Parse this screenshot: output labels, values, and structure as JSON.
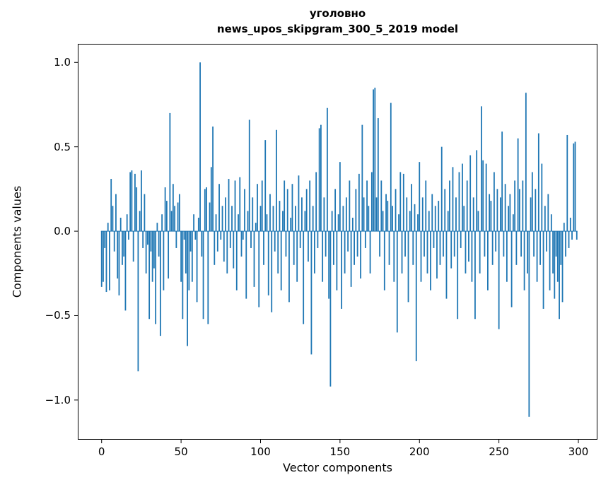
{
  "figure": {
    "title_line1": "уголовно",
    "title_line2": "news_upos_skipgram_300_5_2019 model",
    "xlabel": "Vector components",
    "ylabel": "Components values"
  },
  "chart_data": {
    "type": "bar",
    "title": "уголовно — news_upos_skipgram_300_5_2019 model",
    "xlabel": "Vector components",
    "ylabel": "Components values",
    "bar_color": "#1f77b4",
    "n_components": 300,
    "xlim": [
      -15,
      312
    ],
    "ylim": [
      -1.235,
      1.11
    ],
    "grid": false,
    "legend": "none",
    "xticks": [
      0,
      50,
      100,
      150,
      200,
      250,
      300
    ],
    "xtick_labels": [
      "0",
      "50",
      "100",
      "150",
      "200",
      "250",
      "300"
    ],
    "yticks": [
      -1.0,
      -0.5,
      0.0,
      0.5,
      1.0
    ],
    "ytick_labels": [
      "−1.0",
      "−0.5",
      "0.0",
      "0.5",
      "1.0"
    ],
    "values": [
      -0.33,
      -0.3,
      -0.1,
      -0.36,
      0.05,
      -0.35,
      0.31,
      0.15,
      -0.12,
      0.22,
      -0.28,
      -0.38,
      0.08,
      -0.2,
      -0.15,
      -0.47,
      0.1,
      -0.05,
      0.35,
      0.36,
      -0.18,
      0.34,
      0.26,
      -0.83,
      0.12,
      0.36,
      -0.1,
      0.22,
      -0.25,
      -0.08,
      -0.52,
      -0.12,
      -0.3,
      -0.22,
      -0.55,
      0.05,
      -0.15,
      -0.62,
      0.1,
      -0.35,
      0.26,
      0.18,
      -0.28,
      0.7,
      0.12,
      0.28,
      0.15,
      -0.1,
      0.17,
      0.22,
      -0.3,
      -0.52,
      -0.05,
      -0.25,
      -0.68,
      -0.35,
      -0.12,
      -0.3,
      0.1,
      -0.05,
      -0.42,
      0.08,
      1.0,
      -0.15,
      -0.52,
      0.25,
      0.26,
      -0.55,
      0.17,
      0.38,
      0.62,
      -0.2,
      0.1,
      -0.12,
      0.28,
      -0.05,
      0.15,
      -0.18,
      0.2,
      -0.25,
      0.31,
      -0.1,
      0.15,
      -0.22,
      0.3,
      -0.35,
      0.1,
      0.32,
      -0.15,
      -0.05,
      0.25,
      -0.4,
      0.12,
      0.66,
      -0.1,
      0.2,
      -0.33,
      0.05,
      0.28,
      -0.45,
      0.15,
      0.3,
      -0.2,
      0.54,
      0.1,
      -0.38,
      0.22,
      -0.48,
      0.15,
      -0.12,
      0.6,
      -0.25,
      0.18,
      -0.35,
      0.12,
      0.3,
      -0.15,
      0.25,
      -0.42,
      0.08,
      0.28,
      -0.2,
      0.15,
      -0.3,
      0.33,
      -0.1,
      0.2,
      -0.55,
      0.12,
      0.25,
      -0.18,
      0.3,
      -0.73,
      0.15,
      -0.25,
      0.35,
      -0.1,
      0.61,
      0.63,
      -0.3,
      0.2,
      -0.15,
      0.73,
      -0.4,
      -0.92,
      0.12,
      -0.2,
      0.25,
      -0.35,
      0.1,
      0.41,
      -0.46,
      0.15,
      -0.25,
      0.2,
      -0.12,
      0.3,
      -0.33,
      0.08,
      -0.2,
      0.25,
      -0.15,
      0.34,
      -0.28,
      0.63,
      0.2,
      -0.1,
      0.3,
      0.15,
      -0.25,
      0.35,
      0.84,
      0.85,
      0.2,
      0.67,
      -0.15,
      0.3,
      0.12,
      -0.35,
      0.22,
      0.18,
      -0.2,
      0.76,
      0.15,
      -0.3,
      0.25,
      -0.6,
      0.1,
      0.35,
      -0.25,
      0.34,
      -0.15,
      0.2,
      -0.42,
      0.12,
      0.28,
      -0.2,
      0.16,
      -0.77,
      0.1,
      0.41,
      -0.3,
      0.2,
      -0.15,
      0.3,
      -0.25,
      0.12,
      -0.35,
      0.22,
      -0.1,
      0.15,
      -0.28,
      0.18,
      -0.2,
      0.5,
      -0.15,
      0.25,
      -0.4,
      0.12,
      0.3,
      -0.22,
      0.38,
      -0.15,
      0.2,
      -0.52,
      0.35,
      -0.1,
      0.4,
      0.15,
      -0.25,
      0.3,
      -0.18,
      0.45,
      -0.3,
      0.2,
      -0.52,
      0.48,
      0.12,
      -0.25,
      0.74,
      0.42,
      -0.15,
      0.4,
      -0.35,
      0.22,
      0.18,
      -0.2,
      0.35,
      -0.12,
      0.25,
      -0.58,
      0.2,
      0.59,
      -0.15,
      0.28,
      -0.3,
      0.15,
      0.22,
      -0.45,
      0.1,
      0.3,
      -0.2,
      0.55,
      0.25,
      -0.15,
      0.3,
      -0.35,
      0.82,
      -0.25,
      -1.1,
      0.2,
      0.35,
      -0.15,
      0.25,
      -0.3,
      0.58,
      -0.2,
      0.4,
      -0.46,
      0.15,
      -0.12,
      0.22,
      -0.35,
      0.1,
      -0.25,
      -0.4,
      -0.15,
      -0.3,
      -0.52,
      -0.2,
      -0.42,
      0.05,
      -0.15,
      0.57,
      -0.1,
      0.08,
      -0.05,
      0.52,
      0.53,
      -0.05
    ]
  }
}
